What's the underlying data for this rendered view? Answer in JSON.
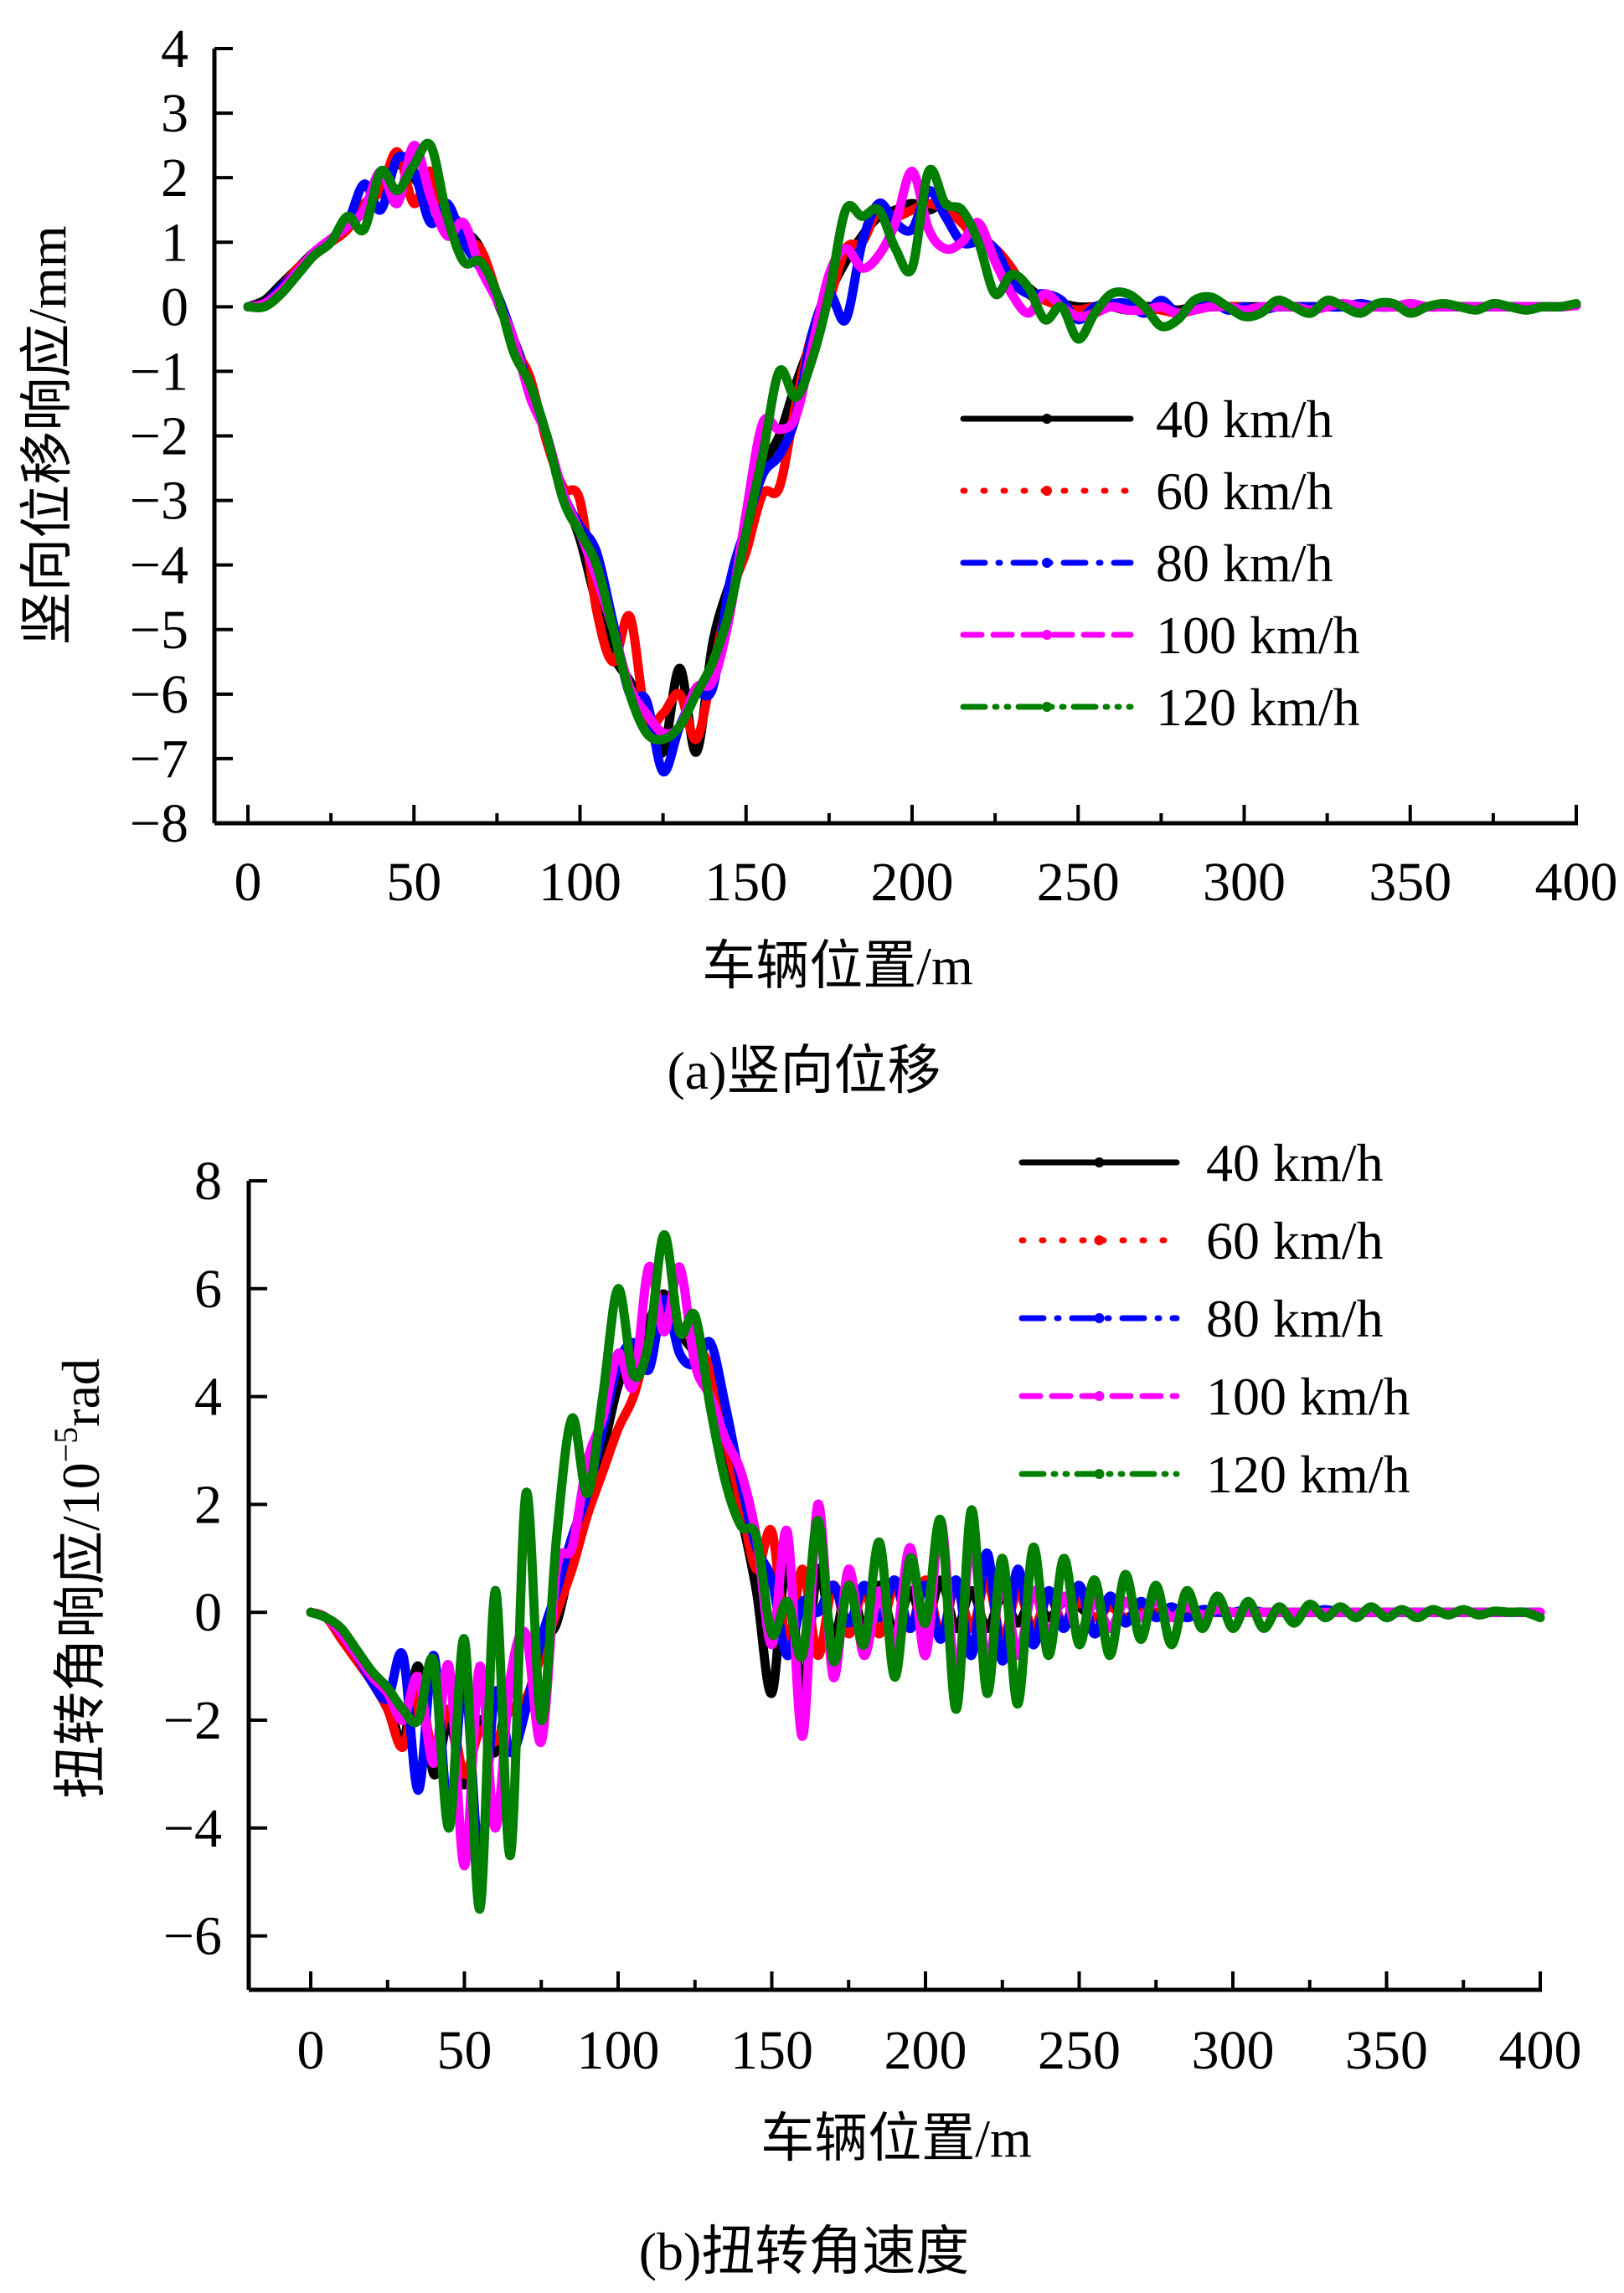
{
  "chart_data": [
    {
      "id": "a",
      "type": "line",
      "caption": "(a)竖向位移",
      "xlabel": "车辆位置/m",
      "ylabel": "竖向位移响应/mm",
      "xlim": [
        0,
        400
      ],
      "ylim": [
        -8,
        4
      ],
      "xticks": [
        0,
        50,
        100,
        150,
        200,
        250,
        300,
        350,
        400
      ],
      "xtick_labels": [
        "0",
        "50",
        "100",
        "150",
        "200",
        "250",
        "300",
        "350",
        "400"
      ],
      "yticks": [
        4,
        3,
        2,
        1,
        0,
        -1,
        -2,
        -3,
        -4,
        -5,
        -6,
        -7,
        -8
      ],
      "ytick_labels": [
        "4",
        "3",
        "2",
        "1",
        "0",
        "−1",
        "−2",
        "−3",
        "−4",
        "−5",
        "−6",
        "−7",
        "−8"
      ],
      "grid": false,
      "legend_position": "center-right",
      "x": [
        0,
        5,
        10,
        15,
        20,
        25,
        30,
        35,
        40,
        45,
        50,
        55,
        60,
        65,
        70,
        75,
        80,
        85,
        90,
        95,
        100,
        105,
        110,
        115,
        120,
        125,
        130,
        135,
        140,
        145,
        150,
        155,
        160,
        165,
        170,
        175,
        180,
        185,
        190,
        195,
        200,
        205,
        210,
        215,
        220,
        225,
        230,
        235,
        240,
        245,
        250,
        255,
        260,
        265,
        270,
        275,
        280,
        285,
        290,
        295,
        300,
        305,
        310,
        315,
        320,
        325,
        330,
        335,
        340,
        345,
        350,
        355,
        360,
        365,
        370,
        375,
        380,
        385,
        390,
        395,
        400
      ],
      "series": [
        {
          "name": "40 km/h",
          "color": "#000000",
          "dash": "solid",
          "values": [
            0,
            0.1,
            0.35,
            0.6,
            0.85,
            1.0,
            1.3,
            1.5,
            1.9,
            2.2,
            2.0,
            1.6,
            1.5,
            1.2,
            0.9,
            0.1,
            -0.5,
            -1.2,
            -2.0,
            -2.9,
            -3.6,
            -4.6,
            -5.4,
            -5.8,
            -6.3,
            -6.9,
            -5.6,
            -6.9,
            -5.2,
            -4.3,
            -3.6,
            -2.5,
            -2.0,
            -1.2,
            -0.5,
            0.2,
            0.7,
            1.1,
            1.4,
            1.5,
            1.6,
            1.5,
            1.6,
            1.3,
            1.1,
            0.9,
            0.5,
            0.3,
            0.1,
            0.05,
            0.0,
            0.0,
            0.0,
            -0.05,
            0.0,
            0.0,
            -0.05,
            0.0,
            0.0,
            0.0,
            0.0,
            0.0,
            0.0,
            0.0,
            0.0,
            0.0,
            0.0,
            0.0,
            0.0,
            0.0,
            0.0,
            0.0,
            0.0,
            0.0,
            0.0,
            0.0,
            0.0,
            0.0,
            0.0,
            0.0,
            0.02
          ]
        },
        {
          "name": "60 km/h",
          "color": "#ff0000",
          "dash": "dotted",
          "values": [
            0,
            0.05,
            0.3,
            0.6,
            0.8,
            1.0,
            1.2,
            1.6,
            1.8,
            2.4,
            1.6,
            2.1,
            1.3,
            1.0,
            0.9,
            0.2,
            -0.6,
            -1.1,
            -2.1,
            -2.8,
            -3.0,
            -4.7,
            -5.5,
            -4.8,
            -6.4,
            -6.3,
            -6.0,
            -6.7,
            -5.6,
            -4.5,
            -3.8,
            -2.9,
            -2.8,
            -1.5,
            -0.4,
            0.1,
            0.9,
            1.0,
            1.5,
            1.4,
            1.5,
            1.6,
            1.5,
            1.3,
            1.0,
            0.9,
            0.6,
            0.2,
            0.1,
            0.0,
            -0.05,
            0.0,
            0.0,
            0.0,
            -0.02,
            -0.05,
            -0.1,
            -0.05,
            0.0,
            0.0,
            0.0,
            -0.05,
            0.0,
            0.0,
            0.0,
            0.0,
            0.0,
            0.0,
            0.0,
            0.0,
            0.0,
            0.0,
            0.0,
            0.0,
            0.0,
            0.0,
            0.0,
            0.0,
            0.0,
            0.0,
            0.02
          ]
        },
        {
          "name": "80 km/h",
          "color": "#0000ff",
          "dash": "dashdot",
          "values": [
            0,
            0.05,
            0.3,
            0.55,
            0.85,
            1.05,
            1.3,
            1.9,
            1.5,
            2.3,
            2.1,
            1.3,
            1.6,
            1.0,
            0.6,
            0.2,
            -0.5,
            -1.3,
            -2.0,
            -2.9,
            -3.4,
            -3.8,
            -4.9,
            -6.0,
            -6.1,
            -7.2,
            -6.5,
            -6.0,
            -5.9,
            -4.3,
            -3.4,
            -2.6,
            -2.3,
            -1.7,
            -0.4,
            0.2,
            -0.2,
            1.0,
            1.6,
            1.3,
            1.2,
            1.8,
            1.4,
            1.0,
            1.0,
            0.9,
            0.4,
            0.2,
            0.2,
            0.1,
            -0.2,
            0.0,
            0.05,
            0.05,
            -0.1,
            0.1,
            -0.1,
            0.0,
            0.1,
            -0.05,
            0.0,
            -0.05,
            0.0,
            0.0,
            0.0,
            0.0,
            0.0,
            0.05,
            0.0,
            0.0,
            0.05,
            0.0,
            0.0,
            0.0,
            0.0,
            0.0,
            0.0,
            0.0,
            0.0,
            0.0,
            0.02
          ]
        },
        {
          "name": "100 km/h",
          "color": "#ff00ff",
          "dash": "dashed",
          "values": [
            0,
            0.05,
            0.25,
            0.55,
            0.85,
            1.05,
            1.25,
            1.5,
            2.1,
            1.6,
            2.5,
            1.7,
            1.1,
            1.3,
            0.6,
            0.1,
            -0.5,
            -1.4,
            -2.0,
            -2.9,
            -3.5,
            -4.2,
            -5.0,
            -5.9,
            -6.3,
            -6.6,
            -6.5,
            -5.9,
            -5.8,
            -4.8,
            -3.2,
            -1.8,
            -1.9,
            -1.7,
            -0.6,
            0.5,
            0.9,
            0.6,
            0.8,
            1.3,
            2.1,
            1.2,
            0.9,
            1.0,
            1.3,
            0.7,
            0.2,
            -0.1,
            0.2,
            0.0,
            -0.15,
            -0.1,
            0.0,
            -0.05,
            -0.05,
            0.0,
            -0.1,
            -0.05,
            0.0,
            0.0,
            -0.05,
            0.0,
            0.0,
            0.0,
            -0.05,
            0.0,
            0.05,
            0.0,
            0.0,
            0.0,
            0.05,
            0.0,
            0.0,
            0.0,
            0.0,
            0.0,
            0.0,
            0.0,
            0.0,
            0.0,
            0.02
          ]
        },
        {
          "name": "120 km/h",
          "color": "#007f00",
          "dash": "dashdotdot",
          "values": [
            0,
            0.0,
            0.2,
            0.5,
            0.8,
            1.0,
            1.4,
            1.2,
            2.1,
            1.8,
            2.2,
            2.5,
            1.4,
            0.7,
            0.7,
            0.2,
            -0.7,
            -1.2,
            -2.0,
            -3.0,
            -3.5,
            -4.0,
            -5.0,
            -6.0,
            -6.6,
            -6.7,
            -6.5,
            -6.0,
            -5.5,
            -4.7,
            -3.5,
            -2.3,
            -1.0,
            -1.4,
            -0.8,
            0.2,
            1.5,
            1.4,
            1.5,
            0.9,
            0.6,
            2.1,
            1.6,
            1.5,
            1.0,
            0.2,
            0.5,
            0.3,
            -0.2,
            0.0,
            -0.5,
            -0.1,
            0.2,
            0.2,
            0.0,
            -0.3,
            -0.2,
            0.1,
            0.15,
            0.0,
            -0.15,
            -0.1,
            0.1,
            0.0,
            -0.1,
            0.1,
            0.0,
            -0.1,
            0.05,
            0.05,
            -0.1,
            0.0,
            0.05,
            0.0,
            -0.05,
            0.05,
            0.0,
            -0.05,
            0.0,
            0.0,
            0.05
          ]
        }
      ]
    },
    {
      "id": "b",
      "type": "line",
      "caption": "(b)扭转角速度",
      "xlabel": "车辆位置/m",
      "ylabel": "扭转角响应/10⁻⁵rad",
      "ylabel_main": "扭转角响应/10",
      "ylabel_sup": "−5",
      "ylabel_unit": "rad",
      "xlim": [
        0,
        400
      ],
      "ylim": [
        -7,
        8
      ],
      "xticks": [
        0,
        50,
        100,
        150,
        200,
        250,
        300,
        350,
        400
      ],
      "xtick_labels": [
        "0",
        "50",
        "100",
        "150",
        "200",
        "250",
        "300",
        "350",
        "400"
      ],
      "yticks": [
        8,
        6,
        4,
        2,
        0,
        -2,
        -4,
        -6
      ],
      "ytick_labels": [
        "8",
        "6",
        "4",
        "2",
        "0",
        "−2",
        "−4",
        "−6"
      ],
      "grid": false,
      "legend_position": "top-right",
      "x": [
        0,
        5,
        10,
        15,
        20,
        25,
        30,
        35,
        40,
        45,
        50,
        55,
        60,
        65,
        70,
        75,
        80,
        85,
        90,
        95,
        100,
        105,
        110,
        115,
        120,
        125,
        130,
        135,
        140,
        145,
        150,
        155,
        160,
        165,
        170,
        175,
        180,
        185,
        190,
        195,
        200,
        205,
        210,
        215,
        220,
        225,
        230,
        235,
        240,
        245,
        250,
        255,
        260,
        265,
        270,
        275,
        280,
        285,
        290,
        295,
        300,
        305,
        310,
        315,
        320,
        325,
        330,
        335,
        340,
        345,
        350,
        355,
        360,
        365,
        370,
        375,
        380,
        385,
        390,
        395,
        400
      ],
      "series": [
        {
          "name": "40 km/h",
          "color": "#000000",
          "dash": "solid",
          "values": [
            0,
            -0.1,
            -0.4,
            -0.8,
            -1.2,
            -1.6,
            -2.4,
            -1.0,
            -3.0,
            -2.0,
            -3.2,
            -2.0,
            -2.6,
            -1.4,
            -1.8,
            -0.6,
            -0.2,
            1.0,
            2.0,
            3.0,
            4.2,
            4.8,
            5.4,
            5.9,
            5.2,
            4.8,
            4.2,
            3.0,
            1.8,
            0.4,
            -1.5,
            1.0,
            -1.5,
            0.8,
            -0.5,
            0.6,
            -0.3,
            0.5,
            -0.4,
            0.4,
            -0.3,
            0.6,
            -0.3,
            0.4,
            -0.3,
            0.3,
            -0.2,
            0.3,
            -0.1,
            0.2,
            0.1,
            -0.1,
            0.1,
            -0.1,
            0.05,
            0.0,
            0.05,
            0.0,
            0.0,
            0.0,
            0.0,
            0.0,
            0.0,
            0.0,
            0.0,
            0.0,
            0.0,
            0.0,
            0.0,
            0.0,
            0.0,
            0.0,
            0.0,
            0.0,
            0.0,
            0.0,
            0.0,
            0.0,
            0.0,
            0.0,
            0.0
          ]
        },
        {
          "name": "60 km/h",
          "color": "#ff0000",
          "dash": "dotted",
          "values": [
            0,
            -0.1,
            -0.5,
            -0.9,
            -1.3,
            -1.8,
            -2.5,
            -1.4,
            -2.6,
            -1.8,
            -3.0,
            -2.2,
            -2.4,
            -1.8,
            -1.6,
            -0.8,
            0.0,
            0.8,
            1.8,
            2.6,
            3.4,
            4.0,
            5.0,
            5.6,
            5.3,
            5.0,
            4.5,
            3.2,
            2.0,
            0.8,
            1.5,
            -0.6,
            0.8,
            -0.8,
            0.5,
            -0.4,
            0.4,
            -0.4,
            0.5,
            -0.3,
            0.6,
            -0.4,
            0.5,
            -0.3,
            0.6,
            -0.5,
            0.4,
            -0.3,
            0.3,
            -0.2,
            0.2,
            -0.1,
            0.1,
            -0.1,
            0.05,
            0.0,
            0.0,
            0.0,
            0.0,
            0.0,
            0.0,
            0.0,
            0.0,
            0.0,
            0.0,
            0.0,
            0.0,
            0.0,
            0.0,
            0.0,
            0.0,
            0.0,
            0.0,
            0.0,
            0.0,
            0.0,
            0.0,
            0.0,
            0.0,
            0.0,
            0.0
          ]
        },
        {
          "name": "80 km/h",
          "color": "#0000ff",
          "dash": "dashdot",
          "values": [
            0,
            -0.1,
            -0.4,
            -0.8,
            -1.3,
            -1.6,
            -0.8,
            -3.3,
            -0.8,
            -3.8,
            -1.2,
            -4.6,
            -1.5,
            -2.6,
            -1.8,
            -0.5,
            0.4,
            1.4,
            2.2,
            3.4,
            4.6,
            5.0,
            4.5,
            5.8,
            4.8,
            4.6,
            5.0,
            3.8,
            2.4,
            1.2,
            0.6,
            -0.8,
            0.2,
            0.0,
            0.5,
            -0.2,
            0.5,
            -0.1,
            0.6,
            -0.3,
            0.5,
            -0.5,
            0.6,
            -0.8,
            1.1,
            -0.9,
            0.8,
            -0.6,
            0.4,
            -0.3,
            0.5,
            -0.4,
            0.3,
            -0.2,
            0.2,
            -0.1,
            0.1,
            -0.1,
            0.05,
            0.0,
            0.0,
            0.05,
            0.0,
            0.0,
            0.0,
            0.0,
            0.05,
            0.0,
            0.0,
            0.0,
            0.0,
            0.0,
            0.0,
            0.0,
            0.0,
            0.0,
            0.0,
            0.0,
            0.0,
            0.0,
            0.0
          ]
        },
        {
          "name": "100 km/h",
          "color": "#ff00ff",
          "dash": "dashed",
          "values": [
            0,
            -0.1,
            -0.4,
            -0.8,
            -1.2,
            -1.5,
            -2.0,
            -1.2,
            -2.8,
            -1.0,
            -4.7,
            -1.0,
            -4.0,
            -1.2,
            -0.4,
            -2.4,
            0.8,
            1.2,
            2.8,
            3.6,
            4.8,
            4.2,
            6.4,
            5.2,
            6.4,
            4.6,
            4.0,
            3.2,
            2.6,
            1.4,
            -0.6,
            1.5,
            -2.3,
            2.0,
            -1.2,
            0.8,
            -0.8,
            0.4,
            -0.6,
            1.2,
            -0.8,
            1.7,
            -1.3,
            1.4,
            -1.0,
            0.6,
            -0.8,
            0.4,
            -0.4,
            0.3,
            -0.4,
            0.2,
            -0.3,
            0.2,
            -0.1,
            0.2,
            -0.1,
            0.1,
            -0.05,
            0.05,
            0.0,
            0.0,
            0.0,
            0.0,
            0.0,
            0.0,
            0.0,
            0.0,
            0.0,
            0.0,
            0.0,
            0.0,
            0.0,
            0.0,
            0.0,
            0.0,
            0.0,
            0.0,
            0.0,
            0.0,
            0.0
          ]
        },
        {
          "name": "120 km/h",
          "color": "#007f00",
          "dash": "dashdotdot",
          "values": [
            0,
            -0.1,
            -0.3,
            -0.7,
            -1.1,
            -1.4,
            -1.8,
            -2.0,
            -0.9,
            -4.0,
            -0.5,
            -5.5,
            0.4,
            -4.5,
            2.2,
            -2.0,
            1.4,
            3.6,
            2.2,
            4.0,
            6.0,
            4.4,
            5.0,
            7.0,
            5.2,
            5.5,
            3.8,
            2.4,
            1.6,
            1.4,
            -0.4,
            0.2,
            -0.8,
            1.7,
            -0.9,
            0.5,
            -0.6,
            1.3,
            -1.2,
            1.0,
            -0.2,
            1.7,
            -1.8,
            1.9,
            -1.5,
            1.0,
            -1.7,
            1.2,
            -0.8,
            1.0,
            -0.6,
            0.6,
            -0.8,
            0.7,
            -0.5,
            0.5,
            -0.6,
            0.4,
            -0.3,
            0.3,
            -0.3,
            0.2,
            -0.3,
            0.1,
            -0.2,
            0.15,
            -0.1,
            0.1,
            -0.1,
            0.1,
            -0.1,
            0.05,
            -0.1,
            0.05,
            -0.05,
            0.05,
            -0.05,
            0.02,
            0.0,
            0.0,
            -0.1
          ]
        }
      ]
    }
  ]
}
